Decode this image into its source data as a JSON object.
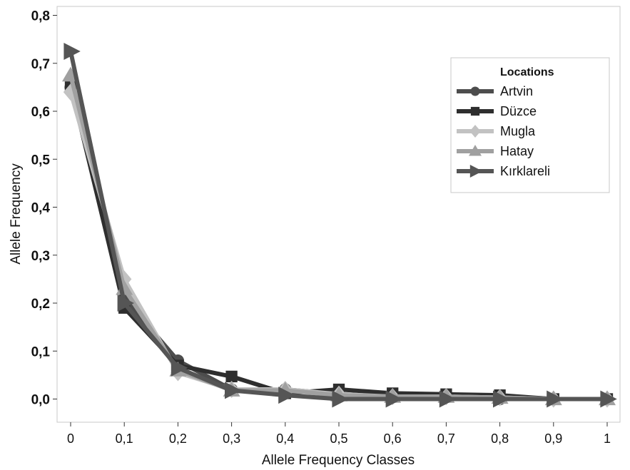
{
  "chart_data": {
    "type": "line",
    "xlabel": "Allele Frequency Classes",
    "ylabel": "Allele Frequency",
    "x": [
      0,
      0.1,
      0.2,
      0.3,
      0.4,
      0.5,
      0.6,
      0.7,
      0.8,
      0.9,
      1
    ],
    "x_tick_labels": [
      "0",
      "0,1",
      "0,2",
      "0,3",
      "0,4",
      "0,5",
      "0,6",
      "0,7",
      "0,8",
      "0,9",
      "1"
    ],
    "ylim": [
      -0.05,
      0.8
    ],
    "y_ticks": [
      0,
      0.1,
      0.2,
      0.3,
      0.4,
      0.5,
      0.6,
      0.7,
      0.8
    ],
    "y_tick_labels": [
      "0,0",
      "0,1",
      "0,2",
      "0,3",
      "0,4",
      "0,5",
      "0,6",
      "0,7",
      "0,8"
    ],
    "grid": false,
    "legend": {
      "title": "Locations",
      "position": "top-right"
    },
    "series": [
      {
        "name": "Artvin",
        "marker": "circle",
        "color": "#4d4d4d",
        "values": [
          0.65,
          0.21,
          0.08,
          0.02,
          0.02,
          0.01,
          0.005,
          0.005,
          0.0,
          0.0,
          0.0
        ]
      },
      {
        "name": "Düzce",
        "marker": "square",
        "color": "#2e2e2e",
        "values": [
          0.655,
          0.19,
          0.07,
          0.047,
          0.012,
          0.02,
          0.012,
          0.01,
          0.008,
          0.0,
          0.0
        ]
      },
      {
        "name": "Mugla",
        "marker": "diamond",
        "color": "#c2c2c2",
        "values": [
          0.64,
          0.25,
          0.055,
          0.02,
          0.02,
          0.01,
          0.005,
          0.005,
          0.003,
          0.0,
          0.0
        ]
      },
      {
        "name": "Hatay",
        "marker": "triangle",
        "color": "#a0a0a0",
        "values": [
          0.675,
          0.23,
          0.06,
          0.018,
          0.018,
          0.008,
          0.005,
          0.005,
          0.003,
          0.0,
          0.0
        ]
      },
      {
        "name": "Kırklareli",
        "marker": "triangle-right",
        "color": "#555555",
        "values": [
          0.725,
          0.2,
          0.065,
          0.018,
          0.008,
          0.0,
          0.0,
          0.0,
          0.0,
          0.0,
          0.0
        ]
      }
    ]
  }
}
